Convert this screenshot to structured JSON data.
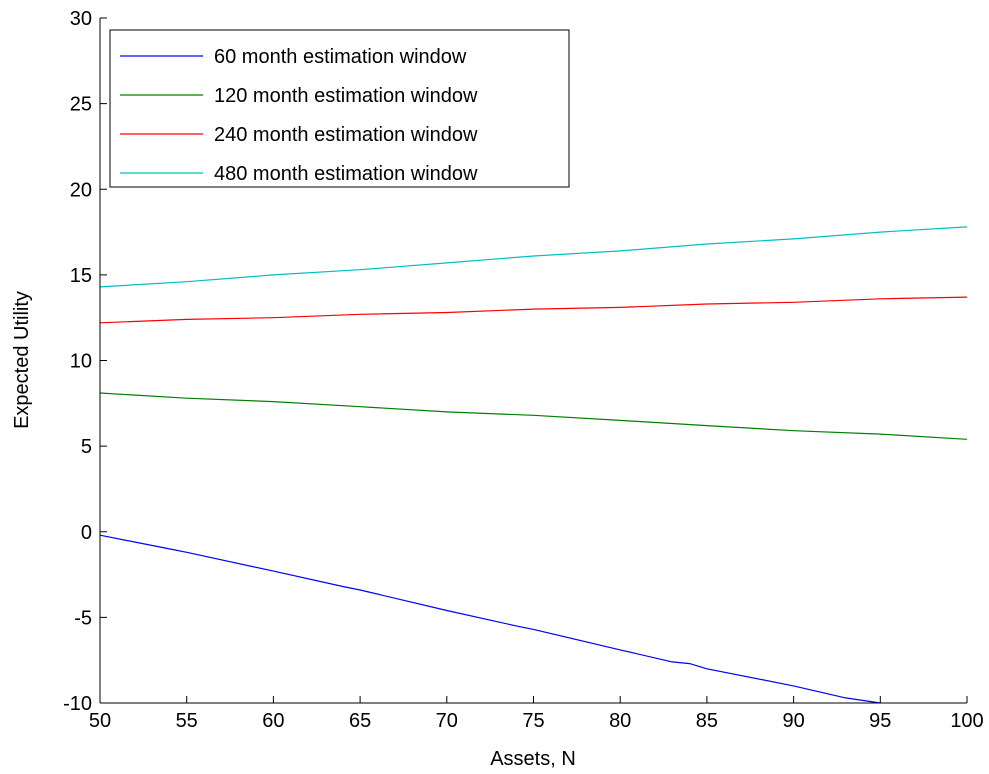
{
  "chart_data": {
    "type": "line",
    "title": "",
    "xlabel": "Assets, N",
    "ylabel": "Expected Utility",
    "xlim": [
      50,
      100
    ],
    "ylim": [
      -10,
      30
    ],
    "xticks": [
      50,
      55,
      60,
      65,
      70,
      75,
      80,
      85,
      90,
      95,
      100
    ],
    "yticks": [
      -10,
      -5,
      0,
      5,
      10,
      15,
      20,
      25,
      30
    ],
    "grid": false,
    "legend_position": "top-left",
    "series": [
      {
        "name": "60 month estimation window",
        "color": "#0000ff",
        "x": [
          50,
          54,
          55,
          60,
          64,
          65,
          70,
          74,
          75,
          80,
          83,
          84,
          85,
          90,
          93,
          95
        ],
        "y": [
          -0.2,
          -1.0,
          -1.2,
          -2.3,
          -3.2,
          -3.4,
          -4.6,
          -5.5,
          -5.7,
          -6.9,
          -7.6,
          -7.7,
          -8.0,
          -9.0,
          -9.7,
          -10.0
        ]
      },
      {
        "name": "120 month estimation window",
        "color": "#008000",
        "x": [
          50,
          55,
          60,
          65,
          70,
          75,
          80,
          85,
          90,
          95,
          100
        ],
        "y": [
          8.1,
          7.8,
          7.6,
          7.3,
          7.0,
          6.8,
          6.5,
          6.2,
          5.9,
          5.7,
          5.4
        ]
      },
      {
        "name": "240 month estimation window",
        "color": "#ff0000",
        "x": [
          50,
          55,
          60,
          65,
          70,
          75,
          80,
          85,
          90,
          95,
          100
        ],
        "y": [
          12.2,
          12.4,
          12.5,
          12.7,
          12.8,
          13.0,
          13.1,
          13.3,
          13.4,
          13.6,
          13.7
        ]
      },
      {
        "name": "480 month estimation window",
        "color": "#00bfbf",
        "x": [
          50,
          55,
          60,
          65,
          70,
          75,
          80,
          85,
          90,
          95,
          100
        ],
        "y": [
          14.3,
          14.6,
          15.0,
          15.3,
          15.7,
          16.1,
          16.4,
          16.8,
          17.1,
          17.5,
          17.8
        ]
      }
    ]
  }
}
